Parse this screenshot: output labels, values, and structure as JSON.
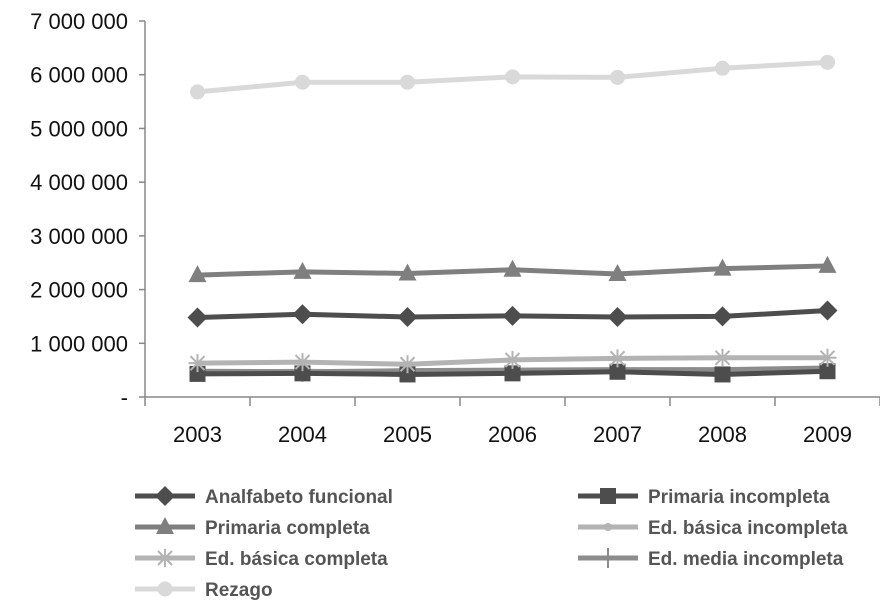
{
  "chart_data": {
    "type": "line",
    "title": "",
    "xlabel": "",
    "ylabel": "",
    "x": [
      "2003",
      "2004",
      "2005",
      "2006",
      "2007",
      "2008",
      "2009"
    ],
    "ylim": [
      0,
      7000000
    ],
    "y_tick_labels": [
      "-",
      "1 000 000",
      "2 000 000",
      "3 000 000",
      "4 000 000",
      "5 000 000",
      "6 000 000",
      "7 000 000"
    ],
    "grid": false,
    "legend_position": "bottom",
    "series": [
      {
        "name": "Analfabeto funcional",
        "marker": "diamond",
        "color": "#4d4d4d",
        "values": [
          1480000,
          1540000,
          1490000,
          1510000,
          1490000,
          1500000,
          1610000
        ]
      },
      {
        "name": "Primaria incompleta",
        "marker": "square",
        "color": "#4d4d4d",
        "values": [
          430000,
          440000,
          420000,
          440000,
          470000,
          420000,
          480000
        ]
      },
      {
        "name": "Primaria completa",
        "marker": "triangle",
        "color": "#7f7f7f",
        "values": [
          2270000,
          2330000,
          2300000,
          2370000,
          2290000,
          2390000,
          2440000
        ]
      },
      {
        "name": "Ed. básica incompleta",
        "marker": "circle-small",
        "color": "#b3b3b3",
        "values": [
          460000,
          480000,
          460000,
          470000,
          490000,
          470000,
          510000
        ]
      },
      {
        "name": "Ed. básica completa",
        "marker": "star",
        "color": "#b3b3b3",
        "values": [
          630000,
          650000,
          610000,
          690000,
          720000,
          730000,
          730000
        ]
      },
      {
        "name": "Ed. media incompleta",
        "marker": "plus",
        "color": "#8c8c8c",
        "values": [
          480000,
          470000,
          490000,
          500000,
          510000,
          510000,
          540000
        ]
      },
      {
        "name": "Rezago",
        "marker": "circle",
        "color": "#d9d9d9",
        "values": [
          5680000,
          5860000,
          5860000,
          5960000,
          5950000,
          6120000,
          6230000
        ]
      }
    ]
  }
}
